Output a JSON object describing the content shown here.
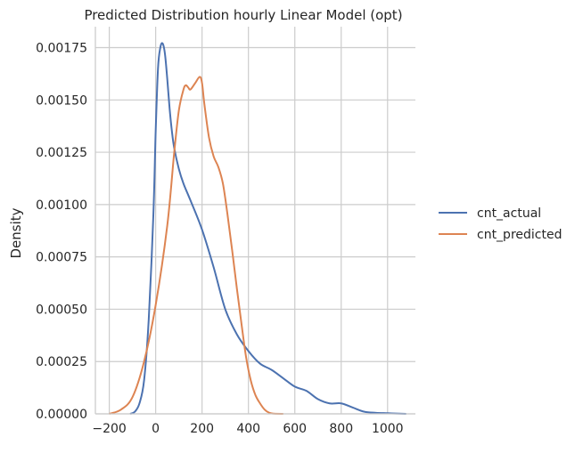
{
  "chart_data": {
    "type": "line",
    "title": "Predicted Distribution hourly Linear Model (opt)",
    "xlabel": "",
    "ylabel": "Density",
    "xlim": [
      -260,
      1120
    ],
    "ylim": [
      0,
      0.00185
    ],
    "x_ticks": [
      -200,
      0,
      200,
      400,
      600,
      800,
      1000
    ],
    "x_tick_labels": [
      "−200",
      "0",
      "200",
      "400",
      "600",
      "800",
      "1000"
    ],
    "y_ticks": [
      0,
      0.00025,
      0.0005,
      0.00075,
      0.001,
      0.00125,
      0.0015,
      0.00175
    ],
    "y_tick_labels": [
      "0.00000",
      "0.00025",
      "0.00050",
      "0.00075",
      "0.00100",
      "0.00125",
      "0.00150",
      "0.00175"
    ],
    "grid": true,
    "legend_position": "right",
    "series": [
      {
        "name": "cnt_actual",
        "color": "#4c72b0",
        "x": [
          -110,
          -90,
          -70,
          -50,
          -30,
          -10,
          0,
          10,
          20,
          30,
          40,
          50,
          60,
          70,
          80,
          100,
          120,
          150,
          200,
          250,
          300,
          350,
          400,
          450,
          500,
          550,
          600,
          650,
          700,
          750,
          800,
          850,
          900,
          950,
          1000,
          1050,
          1080
        ],
        "y": [
          0,
          1e-05,
          5e-05,
          0.00016,
          0.00045,
          0.00095,
          0.00135,
          0.00165,
          0.00175,
          0.00177,
          0.00172,
          0.0016,
          0.00146,
          0.00135,
          0.00127,
          0.00117,
          0.0011,
          0.00102,
          0.00088,
          0.0007,
          0.0005,
          0.00038,
          0.0003,
          0.00024,
          0.00021,
          0.00017,
          0.00013,
          0.00011,
          7e-05,
          5e-05,
          5e-05,
          3e-05,
          1e-05,
          5e-06,
          3e-06,
          1e-06,
          0
        ]
      },
      {
        "name": "cnt_predicted",
        "color": "#dd8452",
        "x": [
          -200,
          -150,
          -100,
          -50,
          0,
          50,
          80,
          100,
          120,
          130,
          140,
          150,
          170,
          190,
          200,
          210,
          230,
          250,
          270,
          290,
          310,
          330,
          350,
          370,
          390,
          410,
          430,
          450,
          470,
          490,
          510,
          550
        ],
        "y": [
          0,
          2e-05,
          8e-05,
          0.00025,
          0.00052,
          0.0009,
          0.00125,
          0.00145,
          0.00155,
          0.00157,
          0.00156,
          0.00155,
          0.00158,
          0.00161,
          0.00158,
          0.00148,
          0.00132,
          0.00123,
          0.00118,
          0.0011,
          0.00095,
          0.00078,
          0.0006,
          0.00043,
          0.00027,
          0.00016,
          9e-05,
          5e-05,
          2e-05,
          5e-06,
          1e-06,
          0
        ]
      }
    ]
  }
}
